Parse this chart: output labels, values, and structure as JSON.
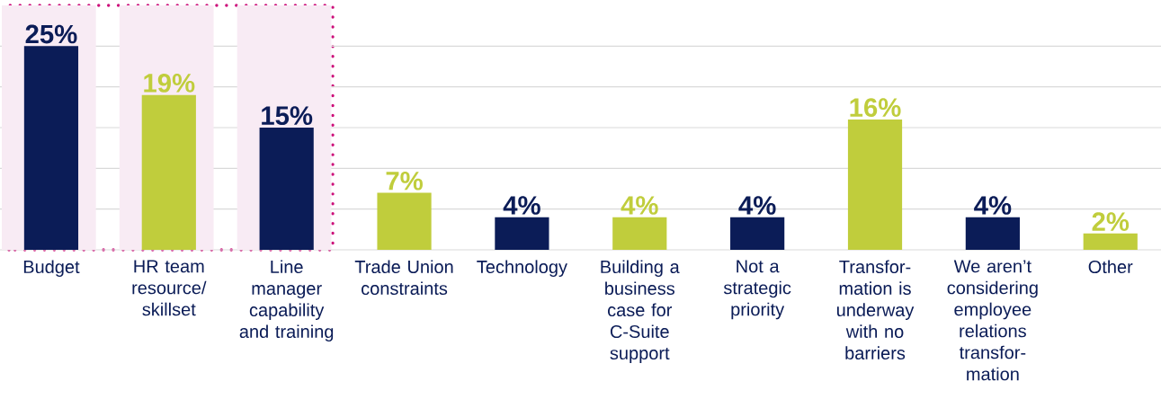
{
  "chart_data": {
    "type": "bar",
    "categories": [
      "Budget",
      "HR team resource/ skillset",
      "Line manager capability and training",
      "Trade Union constraints",
      "Technology",
      "Building a business case for C-Suite support",
      "Not a strategic priority",
      "Transfor-mation is underway with no barriers",
      "We aren’t considering employee relations transfor-mation",
      "Other"
    ],
    "values": [
      25,
      19,
      15,
      7,
      4,
      4,
      4,
      16,
      4,
      2
    ],
    "colors": [
      "#0b1c57",
      "#c0cd3c",
      "#0b1c57",
      "#c0cd3c",
      "#0b1c57",
      "#c0cd3c",
      "#0b1c57",
      "#c0cd3c",
      "#0b1c57",
      "#c0cd3c"
    ],
    "value_labels": [
      "25%",
      "19%",
      "15%",
      "7%",
      "4%",
      "4%",
      "4%",
      "16%",
      "4%",
      "2%"
    ],
    "ylim": [
      0,
      30
    ],
    "yticks": [
      {
        "value": 0,
        "label": null
      },
      {
        "value": 5,
        "label": null
      },
      {
        "value": 10,
        "label": null
      },
      {
        "value": 15,
        "label": null
      },
      {
        "value": 20,
        "label": null
      },
      {
        "value": 25,
        "label": null
      }
    ],
    "tick_labels": "x",
    "grid": "y",
    "bands": [
      {
        "axis": "x",
        "from": "Budget",
        "to": "Budget",
        "color": "#f8ebf4"
      },
      {
        "axis": "x",
        "from": "HR team resource/ skillset",
        "to": "HR team resource/ skillset",
        "color": "#f8ebf4"
      },
      {
        "axis": "x",
        "from": "Line manager capability and training",
        "to": "Line manager capability and training",
        "color": "#f8ebf4"
      }
    ]
  }
}
